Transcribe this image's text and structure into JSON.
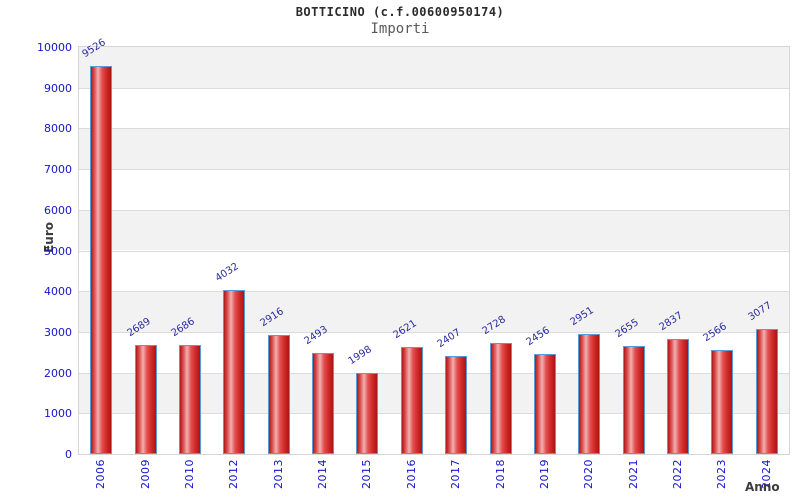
{
  "header": {
    "title": "BOTTICINO (c.f.00600950174)",
    "subtitle": "Importi"
  },
  "chart_data": {
    "type": "bar",
    "title": "BOTTICINO (c.f.00600950174)",
    "subtitle": "Importi",
    "xlabel": "Anno",
    "ylabel": "Euro",
    "categories": [
      "2006",
      "2009",
      "2010",
      "2012",
      "2013",
      "2014",
      "2015",
      "2016",
      "2017",
      "2018",
      "2019",
      "2020",
      "2021",
      "2022",
      "2023",
      "2024"
    ],
    "values": [
      9526,
      2689,
      2686,
      4032,
      2916,
      2493,
      1998,
      2621,
      2407,
      2728,
      2456,
      2951,
      2655,
      2837,
      2566,
      3077
    ],
    "ylim": [
      0,
      10000
    ],
    "yticks": [
      0,
      1000,
      2000,
      3000,
      4000,
      5000,
      6000,
      7000,
      8000,
      9000,
      10000
    ],
    "grid": true,
    "legend": "none",
    "band_colors": [
      "#f2f2f2",
      "#ffffff"
    ],
    "gridline_color": "#dcdcdc",
    "bar_border_color": "#5b9bd5",
    "bar_gradient": [
      "#b01818",
      "#f2b0b0",
      "#aa1515"
    ],
    "tick_label_color": "#1515cd",
    "value_label_color": "#2b2b9e",
    "axis_title_color": "#3c3c3c"
  }
}
